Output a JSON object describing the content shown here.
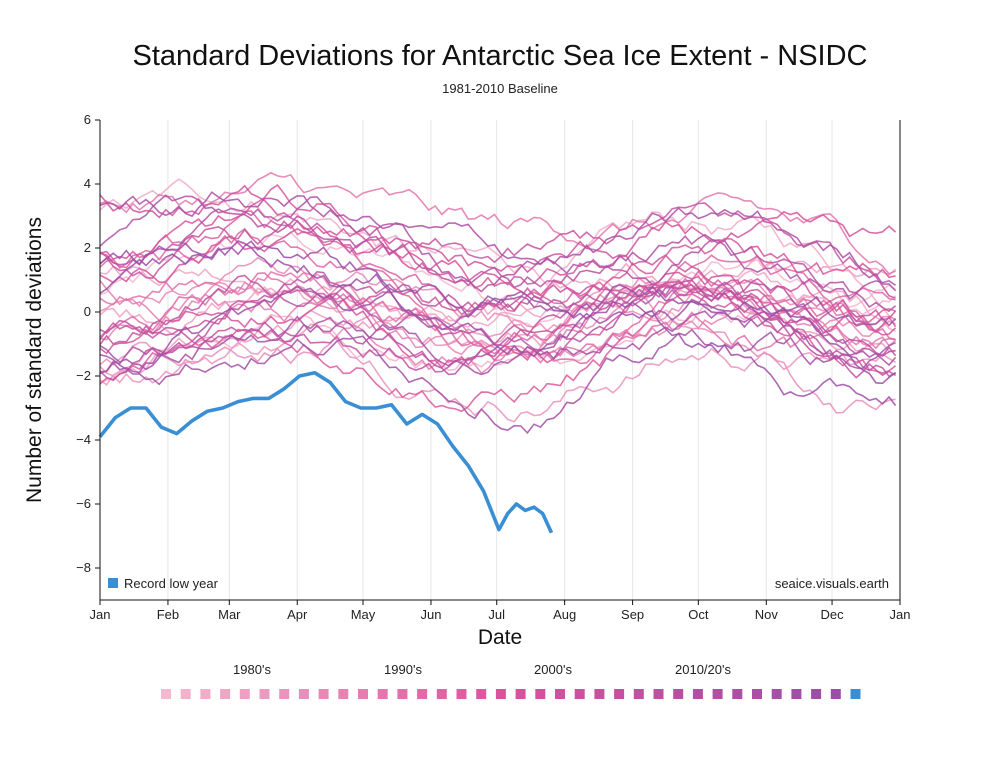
{
  "chart_data": {
    "type": "line",
    "title": "Standard Deviations for Antarctic Sea Ice Extent - NSIDC",
    "subtitle": "1981-2010 Baseline",
    "xlabel": "Date",
    "ylabel": "Number of standard deviations",
    "x_ticks": [
      "Jan",
      "Feb",
      "Mar",
      "Apr",
      "May",
      "Jun",
      "Jul",
      "Aug",
      "Sep",
      "Oct",
      "Nov",
      "Dec",
      "Jan"
    ],
    "y_ticks": [
      6,
      4,
      2,
      0,
      -2,
      -4,
      -6,
      -8
    ],
    "ylim": [
      -9,
      6
    ],
    "grid": "vertical",
    "legend_entry": "Record low year",
    "legend_placement": "bottom-left",
    "watermark": "seaice.visuals.earth",
    "decade_labels": [
      "1980's",
      "1990's",
      "2000's",
      "2010/20's"
    ],
    "year_swatch_count": 36,
    "colors": {
      "early_years": "#f4b8cf",
      "mid_years": "#d9539b",
      "late_years": "#9a4ea8",
      "record_low": "#3a8fd4"
    },
    "series": [
      {
        "name": "Record low year",
        "color": "#3a8fd4",
        "x": [
          "Jan 1",
          "Jan 8",
          "Jan 15",
          "Jan 22",
          "Jan 29",
          "Feb 5",
          "Feb 12",
          "Feb 19",
          "Feb 26",
          "Mar 5",
          "Mar 12",
          "Mar 19",
          "Mar 26",
          "Apr 2",
          "Apr 9",
          "Apr 16",
          "Apr 23",
          "Apr 30",
          "May 7",
          "May 14",
          "May 21",
          "May 28",
          "Jun 4",
          "Jun 11",
          "Jun 18",
          "Jun 25",
          "Jul 2",
          "Jul 6",
          "Jul 10",
          "Jul 14",
          "Jul 18",
          "Jul 22",
          "Jul 26"
        ],
        "values": [
          -3.9,
          -3.3,
          -3.0,
          -3.0,
          -3.6,
          -3.8,
          -3.4,
          -3.1,
          -3.0,
          -2.8,
          -2.7,
          -2.7,
          -2.4,
          -2.0,
          -1.9,
          -2.2,
          -2.8,
          -3.0,
          -3.0,
          -2.9,
          -3.5,
          -3.2,
          -3.5,
          -4.2,
          -4.8,
          -5.6,
          -6.8,
          -6.3,
          -6.0,
          -6.2,
          -6.1,
          -6.3,
          -6.9
        ]
      }
    ]
  }
}
